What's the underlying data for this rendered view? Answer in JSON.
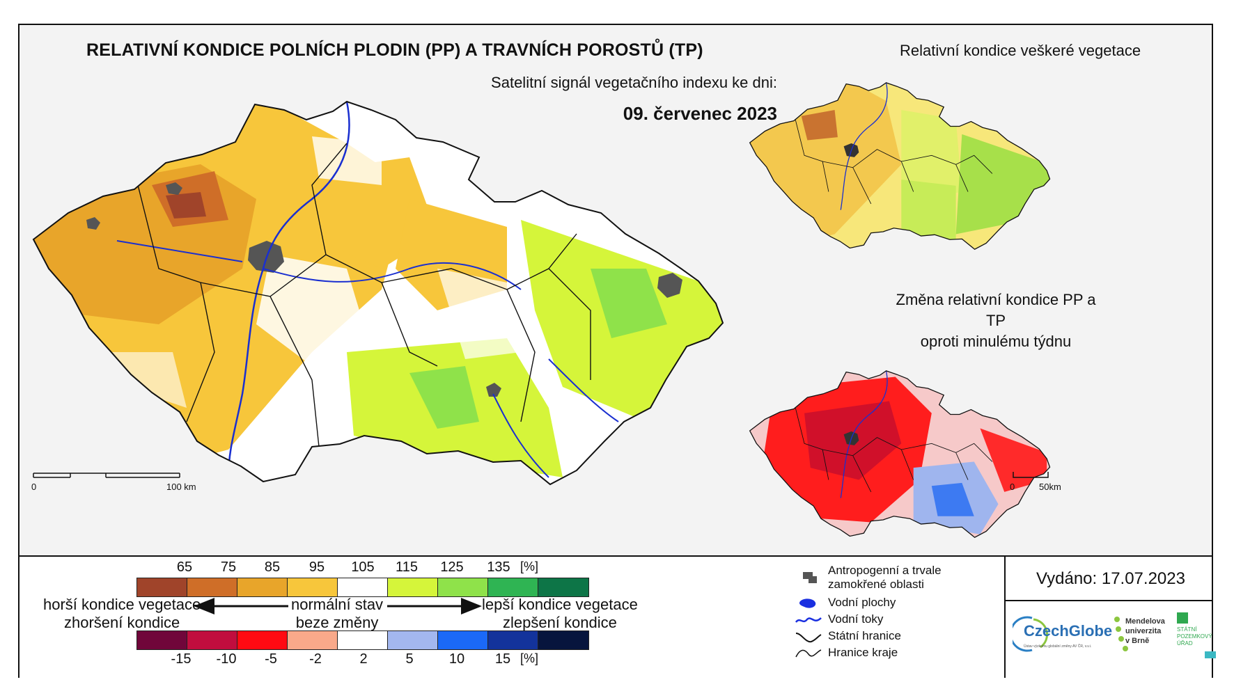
{
  "title": "RELATIVNÍ KONDICE POLNÍCH PLODIN (PP) A TRAVNÍCH POROSTŮ (TP)",
  "subtitle": "Satelitní signál vegetačního indexu ke dni:",
  "date": "09. červenec 2023",
  "main_scale": {
    "start": "0",
    "end": "100 km"
  },
  "inset1": {
    "title": "Relativní kondice veškeré vegetace"
  },
  "inset2": {
    "title_line1": "Změna relativní kondice PP a TP",
    "title_line2": "oproti minulému týdnu",
    "scale_start": "0",
    "scale_end": "50km"
  },
  "colorbar_top": {
    "ticks": [
      "65",
      "75",
      "85",
      "95",
      "105",
      "115",
      "125",
      "135",
      "[%]"
    ],
    "colors": [
      "#a0442a",
      "#cf6e28",
      "#e8a52a",
      "#f7c63b",
      "#ffffff",
      "#d5f53a",
      "#8fe24a",
      "#2fb453",
      "#0d7547"
    ]
  },
  "colorbar_bottom": {
    "ticks": [
      "-15",
      "-10",
      "-5",
      "-2",
      "2",
      "5",
      "10",
      "15",
      "[%]"
    ],
    "colors": [
      "#70063a",
      "#c10d3e",
      "#ff0a12",
      "#f9a98a",
      "#ffffff",
      "#a3b7ef",
      "#1b69f7",
      "#13339b",
      "#07153d"
    ]
  },
  "labels": {
    "worse_line1": "horší kondice vegetace",
    "worse_line2": "zhoršení kondice",
    "normal_line1": "normální stav",
    "normal_line2": "beze změny",
    "better_line1": "lepší kondice vegetace",
    "better_line2": "zlepšení kondice"
  },
  "legend": {
    "anthro_line1": "Antropogenní a trvale",
    "anthro_line2": "zamokřené oblasti",
    "water_bodies": "Vodní plochy",
    "rivers": "Vodní toky",
    "state_border": "Státní hranice",
    "region_border": "Hranice kraje"
  },
  "issued": "Vydáno: 17.07.2023",
  "logos": {
    "czechglobe": "CzechGlobe",
    "czechglobe_sub": "Ústav výzkumu globální změny AV ČR, v.v.i.",
    "mendel1": "Mendelova",
    "mendel2": "univerzita",
    "mendel3": "v Brně",
    "spu1": "STÁTNÍ",
    "spu2": "POZEMKOVÝ",
    "spu3": "ÚŘAD"
  }
}
